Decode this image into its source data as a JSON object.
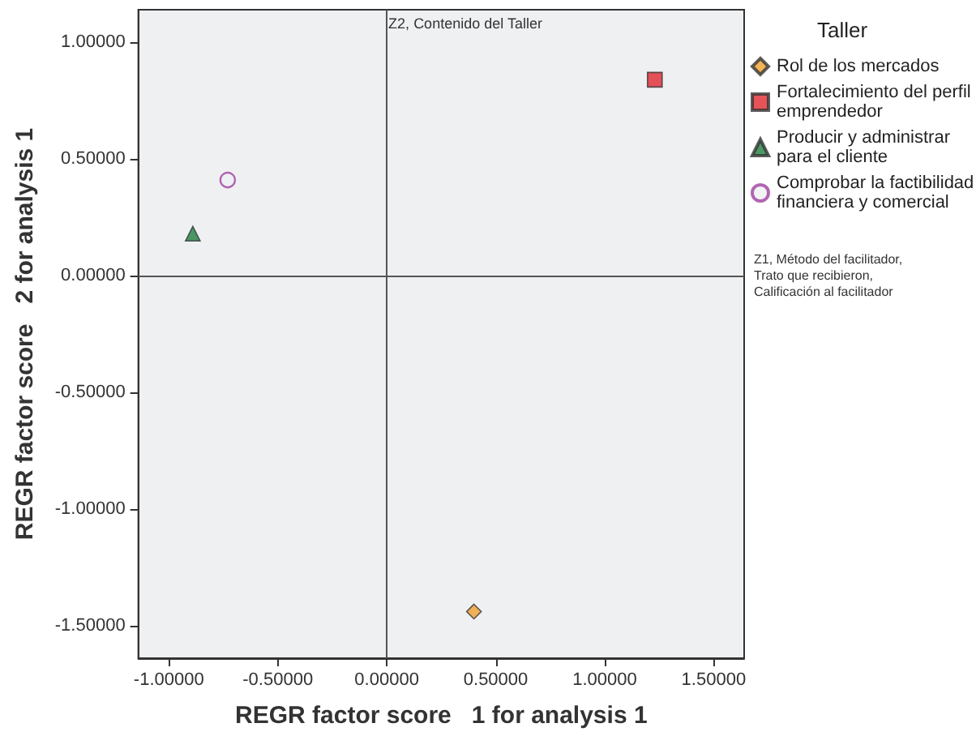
{
  "chart_data": {
    "type": "scatter",
    "xlabel": "REGR factor score   1 for analysis 1",
    "ylabel": "REGR factor score   2 for analysis 1",
    "legend_title": "Taller",
    "series": [
      {
        "name": "Rol de los mercados",
        "color": "#f0a030",
        "marker": "diamond",
        "x": [
          0.4
        ],
        "values": [
          -1.44
        ]
      },
      {
        "name": "Fortalecimiento del perfil emprendedor",
        "color": "#e02830",
        "marker": "square",
        "x": [
          1.23
        ],
        "values": [
          0.84
        ]
      },
      {
        "name": "Producir y administrar para el cliente",
        "color": "#208040",
        "marker": "triangle",
        "x": [
          -0.89
        ],
        "values": [
          0.18
        ]
      },
      {
        "name": "Comprobar la factibilidad financiera y comercial",
        "color": "#a040a0",
        "marker": "circle",
        "x": [
          -0.73
        ],
        "values": [
          0.41
        ]
      }
    ],
    "ref_lines": [
      {
        "axis": "x",
        "value": 0,
        "label": "Z2, Contenido del Taller"
      },
      {
        "axis": "y",
        "value": 0,
        "label": "Z1, Método del facilitador, Trato que recibieron, Calificación al facilitador"
      }
    ],
    "xlim": [
      -1.14,
      1.64
    ],
    "ylim": [
      -1.64,
      1.14
    ],
    "xticks": [
      {
        "value": -1,
        "label": "-1.00000"
      },
      {
        "value": -0.5,
        "label": "-0.50000"
      },
      {
        "value": 0,
        "label": "0.00000"
      },
      {
        "value": 0.5,
        "label": "0.50000"
      },
      {
        "value": 1,
        "label": "1.00000"
      },
      {
        "value": 1.5,
        "label": "1.50000"
      }
    ],
    "yticks": [
      {
        "value": -1.5,
        "label": "-1.50000"
      },
      {
        "value": -1,
        "label": "-1.00000"
      },
      {
        "value": -0.5,
        "label": "-0.50000"
      },
      {
        "value": 0,
        "label": "0.00000"
      },
      {
        "value": 0.5,
        "label": "0.50000"
      },
      {
        "value": 1,
        "label": "1.00000"
      }
    ],
    "grid": false,
    "legend": "right"
  }
}
